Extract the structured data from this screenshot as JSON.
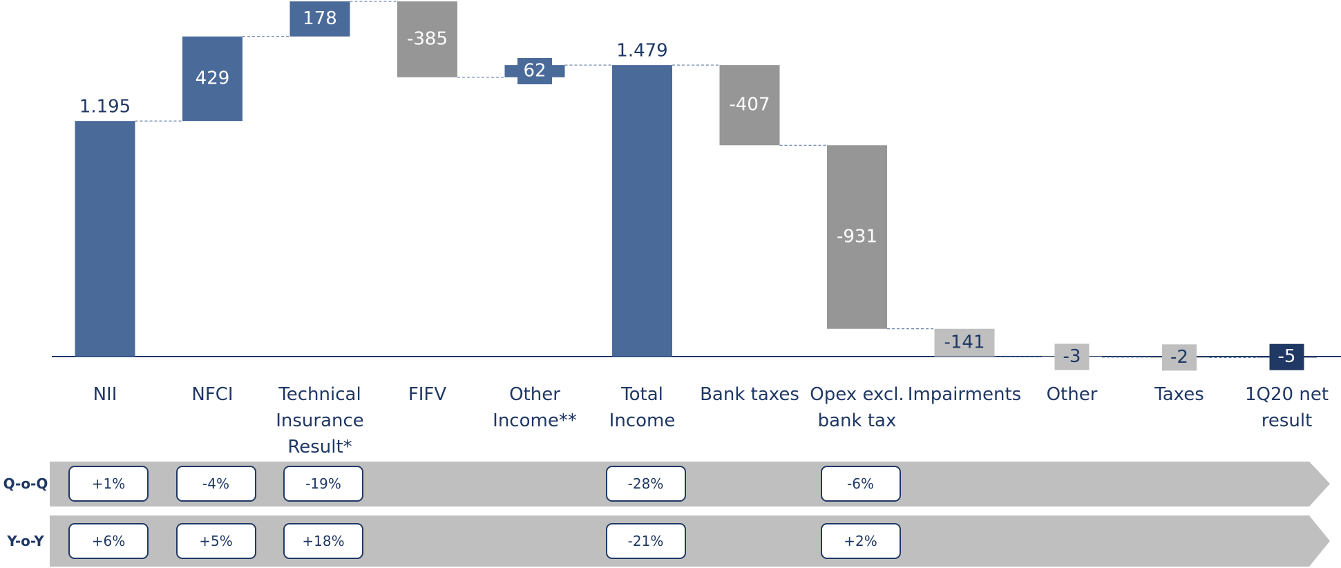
{
  "chart_data": {
    "type": "waterfall",
    "categories": [
      "NII",
      "NFCI",
      "Technical\nInsurance\nResult*",
      "FIFV",
      "Other\nIncome**",
      "Total\nIncome",
      "Bank taxes",
      "Opex excl.\nbank tax",
      "Impairments",
      "Other",
      "Taxes",
      "1Q20 net\nresult"
    ],
    "values": [
      1195,
      429,
      178,
      -385,
      62,
      1479,
      -407,
      -931,
      -141,
      -3,
      -2,
      -5
    ],
    "value_labels": [
      "1.195",
      "429",
      "178",
      "-385",
      "62",
      "1.479",
      "-407",
      "-931",
      "-141",
      "-3",
      "-2",
      "-5"
    ],
    "measure": [
      "absolute",
      "relative",
      "relative",
      "relative",
      "relative",
      "absolute",
      "relative",
      "relative",
      "relative",
      "relative",
      "relative",
      "absolute"
    ],
    "colors": [
      "#4a6a99",
      "#4a6a99",
      "#4a6a99",
      "#969696",
      "#4a6a99",
      "#4a6a99",
      "#969696",
      "#969696",
      "#bfbfbf",
      "#bfbfbf",
      "#bfbfbf",
      "#1f3864"
    ],
    "comparisons": [
      {
        "label": "Q-o-Q",
        "values": [
          "+1%",
          "-4%",
          "-19%",
          null,
          null,
          "-28%",
          null,
          "-6%",
          null,
          null,
          null,
          null
        ]
      },
      {
        "label": "Y-o-Y",
        "values": [
          "+6%",
          "+5%",
          "+18%",
          null,
          null,
          "-21%",
          null,
          "+2%",
          null,
          null,
          null,
          null
        ]
      }
    ]
  }
}
